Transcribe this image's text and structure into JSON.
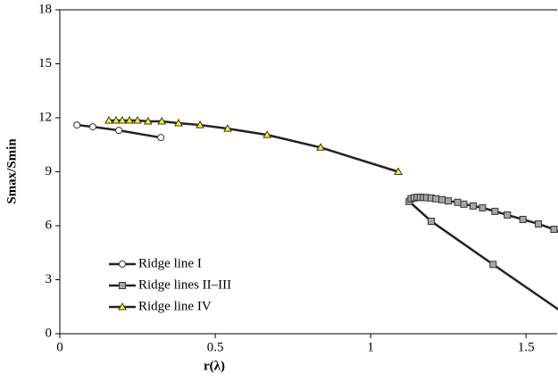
{
  "chart_data": {
    "type": "line",
    "x_label": "r(λ)",
    "y_label": "Smax/Smin",
    "xlim": [
      0,
      1.6
    ],
    "ylim": [
      0,
      18
    ],
    "xticks": [
      0,
      0.5,
      1,
      1.5
    ],
    "yticks": [
      0,
      3,
      6,
      9,
      12,
      15,
      18
    ],
    "legend": "lower left",
    "series": [
      {
        "name": "Ridge line I",
        "marker": "circle",
        "color": "#ffffff",
        "x": [
          0.055,
          0.106,
          0.19,
          0.325
        ],
        "values": [
          11.6,
          11.5,
          11.3,
          10.9
        ]
      },
      {
        "name": "Ridge lines II–III",
        "marker": "square",
        "color": "#a6a6a6",
        "x": [
          1.65,
          1.394,
          1.195,
          1.124,
          1.13,
          1.14,
          1.15,
          1.16,
          1.17,
          1.18,
          1.195,
          1.21,
          1.23,
          1.25,
          1.28,
          1.3,
          1.33,
          1.36,
          1.4,
          1.44,
          1.49,
          1.54,
          1.59,
          1.65
        ],
        "values": [
          0.8,
          3.85,
          6.25,
          7.35,
          7.5,
          7.55,
          7.58,
          7.58,
          7.57,
          7.56,
          7.54,
          7.5,
          7.45,
          7.38,
          7.3,
          7.2,
          7.1,
          7.0,
          6.8,
          6.6,
          6.35,
          6.1,
          5.8,
          5.4
        ]
      },
      {
        "name": "Ridge line IV",
        "marker": "triangle",
        "color": "#ffff00",
        "x": [
          0.158,
          0.181,
          0.201,
          0.224,
          0.25,
          0.284,
          0.328,
          0.382,
          0.451,
          0.54,
          0.667,
          0.839,
          1.089
        ],
        "values": [
          11.85,
          11.85,
          11.85,
          11.85,
          11.85,
          11.8,
          11.8,
          11.7,
          11.6,
          11.4,
          11.05,
          10.35,
          9.0
        ]
      }
    ]
  }
}
